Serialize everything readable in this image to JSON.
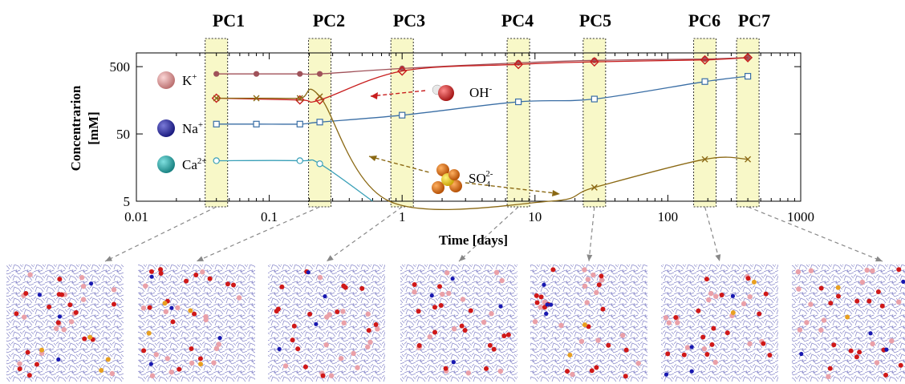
{
  "period_labels": [
    "PC1",
    "PC2",
    "PC3",
    "PC4",
    "PC5",
    "PC6",
    "PC7"
  ],
  "ion_labels": {
    "k": {
      "base": "K",
      "sup": "+"
    },
    "na": {
      "base": "Na",
      "sup": "+"
    },
    "ca": {
      "base": "Ca",
      "sup": "2+"
    },
    "oh": {
      "base": "OH",
      "sup": "-"
    },
    "so4": {
      "base": "SO",
      "sub": "4",
      "sup": "2-"
    }
  },
  "colors": {
    "k": "#a0525a",
    "oh": "#c81e1e",
    "na": "#3a6ea5",
    "ca": "#3aa0b8",
    "so4": "#8b6914",
    "band_fill": "#f8f8c8",
    "band_stroke": "#333333",
    "arrow": "#888888"
  },
  "chart_data": {
    "type": "line",
    "xlabel": "Time [days]",
    "ylabel_lines": [
      "Concentrarion",
      "[mM]"
    ],
    "x_scale": "log",
    "y_scale": "log",
    "xlim": [
      0.01,
      1000
    ],
    "ylim": [
      5,
      800
    ],
    "x_ticks": [
      {
        "value": 0.01,
        "label": "0.01"
      },
      {
        "value": 0.1,
        "label": "0.1"
      },
      {
        "value": 1,
        "label": "1"
      },
      {
        "value": 10,
        "label": "10"
      },
      {
        "value": 100,
        "label": "100"
      },
      {
        "value": 1000,
        "label": "1000"
      }
    ],
    "y_ticks": [
      {
        "value": 5,
        "label": "5"
      },
      {
        "value": 50,
        "label": "50"
      },
      {
        "value": 500,
        "label": "500"
      }
    ],
    "period_days": [
      0.04,
      0.24,
      1.0,
      7.5,
      28,
      190,
      400
    ],
    "series": [
      {
        "key": "k",
        "marker": "dot",
        "x": [
          0.04,
          0.08,
          0.17,
          0.24,
          1.0,
          7.5,
          28,
          190,
          400
        ],
        "y": [
          390,
          390,
          390,
          390,
          470,
          570,
          620,
          650,
          680
        ]
      },
      {
        "key": "oh",
        "marker": "diamond",
        "x": [
          0.04,
          0.17,
          0.24,
          1.0,
          7.5,
          28,
          190,
          400
        ],
        "y": [
          170,
          160,
          160,
          430,
          540,
          590,
          630,
          680
        ]
      },
      {
        "key": "na",
        "marker": "square",
        "x": [
          0.04,
          0.08,
          0.17,
          0.24,
          1.0,
          7.5,
          28,
          190,
          400
        ],
        "y": [
          70,
          70,
          70,
          75,
          95,
          150,
          165,
          300,
          360
        ]
      },
      {
        "key": "ca",
        "marker": "circle",
        "x": [
          0.04,
          0.17,
          0.24,
          0.6
        ],
        "y": [
          20,
          20,
          18,
          5
        ]
      },
      {
        "key": "so4",
        "marker": "cross",
        "x": [
          0.04,
          0.08,
          0.17,
          0.24,
          0.8,
          13,
          28,
          190,
          400
        ],
        "y": [
          170,
          170,
          170,
          180,
          5,
          5,
          8,
          21,
          21
        ]
      }
    ]
  }
}
